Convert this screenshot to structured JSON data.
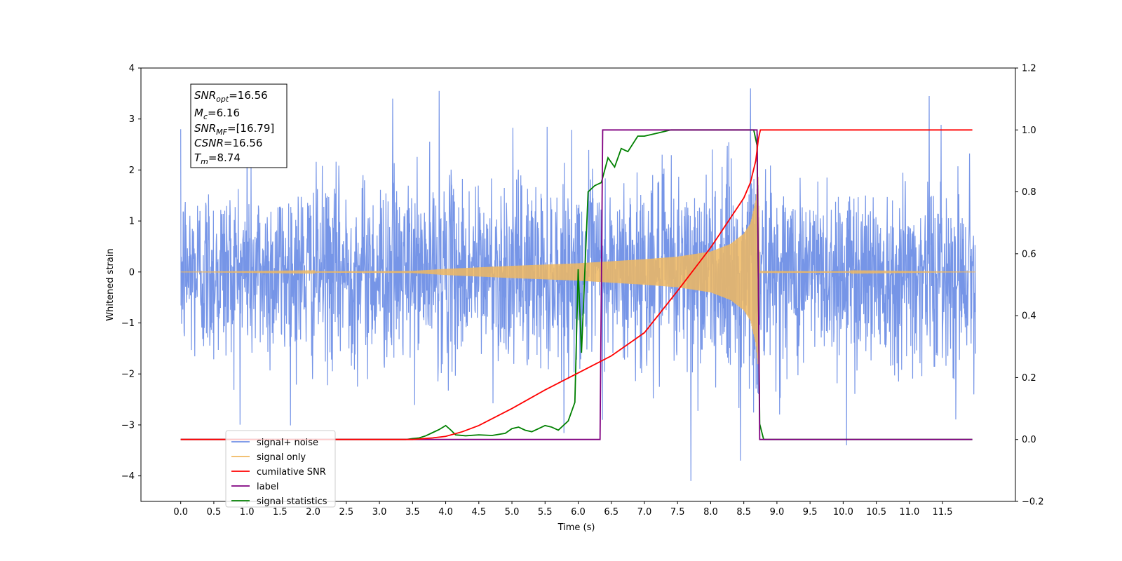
{
  "chart_data": {
    "type": "line",
    "xlabel": "Time (s)",
    "ylabel": "Whitened strain",
    "xlim": [
      -0.6,
      12.6
    ],
    "ylim": [
      -4.5,
      4.0
    ],
    "y2lim": [
      -0.2,
      1.2
    ],
    "x_ticks": [
      "0.0",
      "0.5",
      "1.0",
      "1.5",
      "2.0",
      "2.5",
      "3.0",
      "3.5",
      "4.0",
      "4.5",
      "5.0",
      "5.5",
      "6.0",
      "6.5",
      "7.0",
      "7.5",
      "8.0",
      "8.5",
      "9.0",
      "9.5",
      "10.0",
      "10.5",
      "11.0",
      "11.5"
    ],
    "y_ticks": [
      "4",
      "3",
      "2",
      "1",
      "0",
      "−1",
      "−2",
      "−3",
      "−4"
    ],
    "y2_ticks": [
      "1.2",
      "1.0",
      "0.8",
      "0.6",
      "0.4",
      "0.2",
      "0.0",
      "−0.2"
    ],
    "grid": false,
    "legend_placement": "lower-left",
    "annotation": {
      "snr_opt": "SNR",
      "snr_opt_sub": "opt",
      "snr_opt_val": "=16.56",
      "mc": "M",
      "mc_sub": "c",
      "mc_val": "=6.16",
      "snr_mf": "SNR",
      "snr_mf_sub": "MF",
      "snr_mf_val": "=[16.79]",
      "csnr": "CSNR",
      "csnr_val": "=16.56",
      "tm": "T",
      "tm_sub": "m",
      "tm_val": "=8.74"
    },
    "series": [
      {
        "name": "signal+ noise",
        "color": "#6f8fe6",
        "axis": "left",
        "x_range": [
          0.0,
          12.0
        ],
        "noise_sigma": 1.0,
        "envelope_peak": [
          8.72,
          1.6
        ],
        "notable_extremes": [
          [
            1.0,
            3.1
          ],
          [
            3.2,
            3.4
          ],
          [
            3.9,
            3.55
          ],
          [
            7.7,
            -4.1
          ],
          [
            8.45,
            -3.7
          ],
          [
            8.6,
            3.6
          ],
          [
            10.05,
            -3.4
          ],
          [
            11.3,
            3.45
          ]
        ]
      },
      {
        "name": "signal only",
        "color": "#f0b860",
        "axis": "left",
        "envelope": [
          [
            0.0,
            0.0
          ],
          [
            3.5,
            0.02
          ],
          [
            4.0,
            0.06
          ],
          [
            5.0,
            0.12
          ],
          [
            6.0,
            0.17
          ],
          [
            7.0,
            0.25
          ],
          [
            7.5,
            0.3
          ],
          [
            8.0,
            0.4
          ],
          [
            8.3,
            0.55
          ],
          [
            8.5,
            0.75
          ],
          [
            8.6,
            0.95
          ],
          [
            8.68,
            1.4
          ],
          [
            8.72,
            1.9
          ],
          [
            8.74,
            0.02
          ],
          [
            12.0,
            0.0
          ]
        ]
      },
      {
        "name": "cumilative SNR",
        "color": "#ff0000",
        "axis": "right",
        "points": [
          [
            0.0,
            0.0
          ],
          [
            3.5,
            0.0
          ],
          [
            3.8,
            0.005
          ],
          [
            4.0,
            0.01
          ],
          [
            4.25,
            0.025
          ],
          [
            4.5,
            0.045
          ],
          [
            5.0,
            0.1
          ],
          [
            5.5,
            0.16
          ],
          [
            6.0,
            0.215
          ],
          [
            6.5,
            0.27
          ],
          [
            7.0,
            0.345
          ],
          [
            7.5,
            0.48
          ],
          [
            8.0,
            0.62
          ],
          [
            8.25,
            0.7
          ],
          [
            8.5,
            0.78
          ],
          [
            8.6,
            0.83
          ],
          [
            8.68,
            0.9
          ],
          [
            8.72,
            0.97
          ],
          [
            8.75,
            1.0
          ],
          [
            11.95,
            1.0
          ]
        ]
      },
      {
        "name": "label",
        "color": "#800080",
        "axis": "right",
        "points": [
          [
            0.0,
            0.0
          ],
          [
            6.33,
            0.0
          ],
          [
            6.37,
            1.0
          ],
          [
            8.7,
            1.0
          ],
          [
            8.74,
            0.0
          ],
          [
            11.95,
            0.0
          ]
        ]
      },
      {
        "name": "signal statistics",
        "color": "#008000",
        "axis": "right",
        "points": [
          [
            0.0,
            0.0
          ],
          [
            3.4,
            0.0
          ],
          [
            3.5,
            0.003
          ],
          [
            3.6,
            0.005
          ],
          [
            3.7,
            0.012
          ],
          [
            3.8,
            0.022
          ],
          [
            3.9,
            0.032
          ],
          [
            4.0,
            0.045
          ],
          [
            4.08,
            0.03
          ],
          [
            4.15,
            0.015
          ],
          [
            4.3,
            0.012
          ],
          [
            4.5,
            0.015
          ],
          [
            4.7,
            0.013
          ],
          [
            4.9,
            0.02
          ],
          [
            5.0,
            0.035
          ],
          [
            5.1,
            0.04
          ],
          [
            5.2,
            0.03
          ],
          [
            5.3,
            0.025
          ],
          [
            5.4,
            0.035
          ],
          [
            5.5,
            0.045
          ],
          [
            5.6,
            0.04
          ],
          [
            5.7,
            0.03
          ],
          [
            5.85,
            0.06
          ],
          [
            5.95,
            0.12
          ],
          [
            6.0,
            0.55
          ],
          [
            6.05,
            0.28
          ],
          [
            6.15,
            0.8
          ],
          [
            6.25,
            0.82
          ],
          [
            6.35,
            0.83
          ],
          [
            6.45,
            0.91
          ],
          [
            6.55,
            0.88
          ],
          [
            6.65,
            0.94
          ],
          [
            6.75,
            0.93
          ],
          [
            6.9,
            0.98
          ],
          [
            7.0,
            0.98
          ],
          [
            7.2,
            0.99
          ],
          [
            7.4,
            1.0
          ],
          [
            8.65,
            1.0
          ],
          [
            8.7,
            0.95
          ],
          [
            8.74,
            0.05
          ],
          [
            8.8,
            0.0
          ],
          [
            11.95,
            0.0
          ]
        ]
      }
    ]
  },
  "legend": [
    "signal+ noise",
    "signal only",
    "cumilative SNR",
    "label",
    "signal statistics"
  ],
  "legend_colors": [
    "#6f8fe6",
    "#f0b860",
    "#ff0000",
    "#800080",
    "#008000"
  ]
}
